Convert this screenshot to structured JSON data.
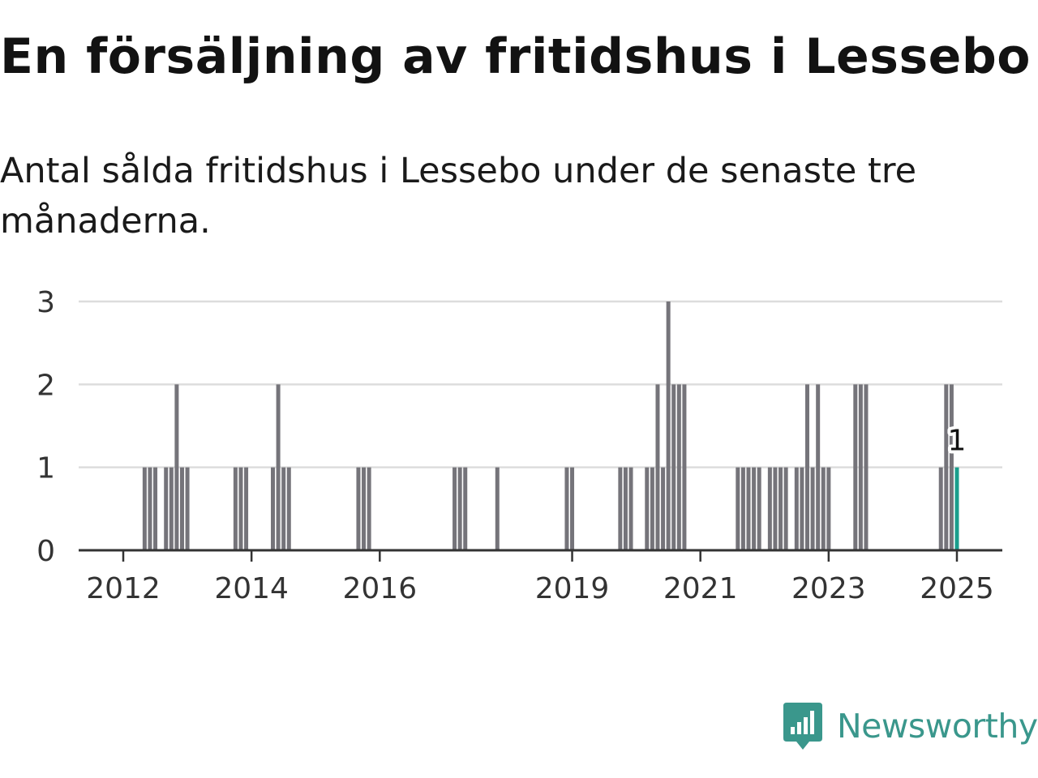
{
  "header": {
    "title": "En försäljning av fritidshus i Lessebo",
    "subtitle": "Antal sålda fritidshus i Lessebo under de senaste tre månaderna."
  },
  "brand": {
    "name": "Newsworthy",
    "color": "#3a978c"
  },
  "colors": {
    "bar": "#75747a",
    "highlight": "#1a9e8c",
    "grid": "#dddddd",
    "axis": "#333333"
  },
  "chart_data": {
    "type": "bar",
    "title": "En försäljning av fritidshus i Lessebo",
    "subtitle": "Antal sålda fritidshus i Lessebo under de senaste tre månaderna.",
    "xlabel": "",
    "ylabel": "",
    "ylim": [
      0,
      3
    ],
    "yticks": [
      "0",
      "1",
      "2",
      "3"
    ],
    "xticks": [
      "2012",
      "2014",
      "2016",
      "2019",
      "2021",
      "2023",
      "2025"
    ],
    "grid": true,
    "legend": "none",
    "categories": [
      "2012-05",
      "2012-06",
      "2012-07",
      "2012-09",
      "2012-10",
      "2012-11",
      "2012-12",
      "2013-01",
      "2013-10",
      "2013-11",
      "2013-12",
      "2014-05",
      "2014-06",
      "2014-07",
      "2014-08",
      "2015-09",
      "2015-10",
      "2015-11",
      "2017-03",
      "2017-04",
      "2017-05",
      "2017-11",
      "2018-12",
      "2019-01",
      "2019-10",
      "2019-11",
      "2019-12",
      "2020-03",
      "2020-04",
      "2020-05",
      "2020-06",
      "2020-07",
      "2020-08",
      "2020-09",
      "2020-10",
      "2021-08",
      "2021-09",
      "2021-10",
      "2021-11",
      "2021-12",
      "2022-02",
      "2022-03",
      "2022-04",
      "2022-05",
      "2022-07",
      "2022-08",
      "2022-09",
      "2022-10",
      "2022-11",
      "2022-12",
      "2023-01",
      "2023-06",
      "2023-07",
      "2023-08",
      "2024-10",
      "2024-11",
      "2024-12",
      "2025-01"
    ],
    "values": [
      1,
      1,
      1,
      1,
      1,
      2,
      1,
      1,
      1,
      1,
      1,
      1,
      2,
      1,
      1,
      1,
      1,
      1,
      1,
      1,
      1,
      1,
      1,
      1,
      1,
      1,
      1,
      1,
      1,
      2,
      1,
      3,
      2,
      2,
      2,
      1,
      1,
      1,
      1,
      1,
      1,
      1,
      1,
      1,
      1,
      1,
      2,
      1,
      2,
      1,
      1,
      2,
      2,
      2,
      1,
      2,
      2,
      1
    ],
    "highlight": {
      "category": "2025-01",
      "value": 1,
      "label": "1"
    }
  }
}
